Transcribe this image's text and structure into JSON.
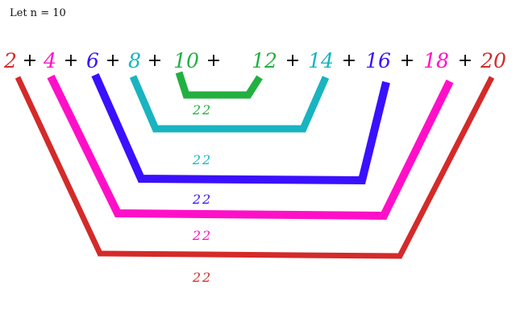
{
  "caption": "Let n = 10",
  "terms": [
    {
      "text": "2",
      "color": "#d42a2a"
    },
    {
      "text": "4",
      "color": "#ff10c8"
    },
    {
      "text": "6",
      "color": "#3a10ff"
    },
    {
      "text": "8",
      "color": "#18b4c0"
    },
    {
      "text": "10",
      "color": "#22b040"
    },
    {
      "text": "12",
      "color": "#22b040"
    },
    {
      "text": "14",
      "color": "#18b4c0"
    },
    {
      "text": "16",
      "color": "#3a10ff"
    },
    {
      "text": "18",
      "color": "#ff10c8"
    },
    {
      "text": "20",
      "color": "#d42a2a"
    }
  ],
  "plus_sign": "+",
  "pairs": [
    {
      "label": "22",
      "color": "#22b040"
    },
    {
      "label": "22",
      "color": "#18b4c0"
    },
    {
      "label": "22",
      "color": "#3a10ff"
    },
    {
      "label": "22",
      "color": "#ff10c8"
    },
    {
      "label": "22",
      "color": "#d42a2a"
    }
  ]
}
